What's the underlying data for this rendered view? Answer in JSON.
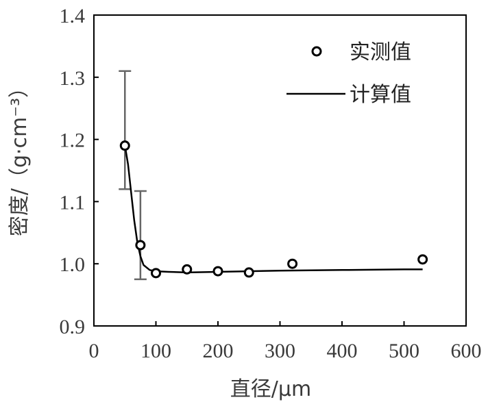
{
  "chart_data": {
    "type": "scatter",
    "xlabel": "直径/μm",
    "ylabel": "密度/（g·cm⁻³）",
    "xlim": [
      0,
      600
    ],
    "ylim": [
      0.9,
      1.4
    ],
    "x_ticks": [
      0,
      100,
      200,
      300,
      400,
      500,
      600
    ],
    "x_tick_labels": [
      "0",
      "100",
      "200",
      "300",
      "400",
      "500",
      "600"
    ],
    "y_ticks": [
      0.9,
      1.0,
      1.1,
      1.2,
      1.3,
      1.4
    ],
    "y_tick_labels": [
      "0.9",
      "1.0",
      "1.1",
      "1.2",
      "1.3",
      "1.4"
    ],
    "grid": false,
    "legend_position": "top-right",
    "series": [
      {
        "name": "实测值",
        "kind": "scatter",
        "marker": "open-circle",
        "color": "#000000",
        "x": [
          50,
          75,
          100,
          150,
          200,
          250,
          320,
          530
        ],
        "y": [
          1.19,
          1.03,
          0.985,
          0.991,
          0.988,
          0.986,
          1.0,
          1.007
        ]
      },
      {
        "name": "计算值",
        "kind": "line",
        "color": "#000000",
        "x": [
          50,
          55,
          60,
          65,
          70,
          75,
          80,
          90,
          100,
          120,
          150,
          200,
          250,
          300,
          400,
          500,
          530
        ],
        "y": [
          1.19,
          1.16,
          1.115,
          1.07,
          1.035,
          1.012,
          0.998,
          0.99,
          0.988,
          0.987,
          0.986,
          0.987,
          0.988,
          0.989,
          0.99,
          0.991,
          0.991
        ]
      }
    ],
    "error_bars": {
      "color": "#666666",
      "points": [
        {
          "x": 50,
          "low": 1.12,
          "high": 1.31
        },
        {
          "x": 75,
          "low": 0.975,
          "high": 1.117
        }
      ]
    }
  }
}
